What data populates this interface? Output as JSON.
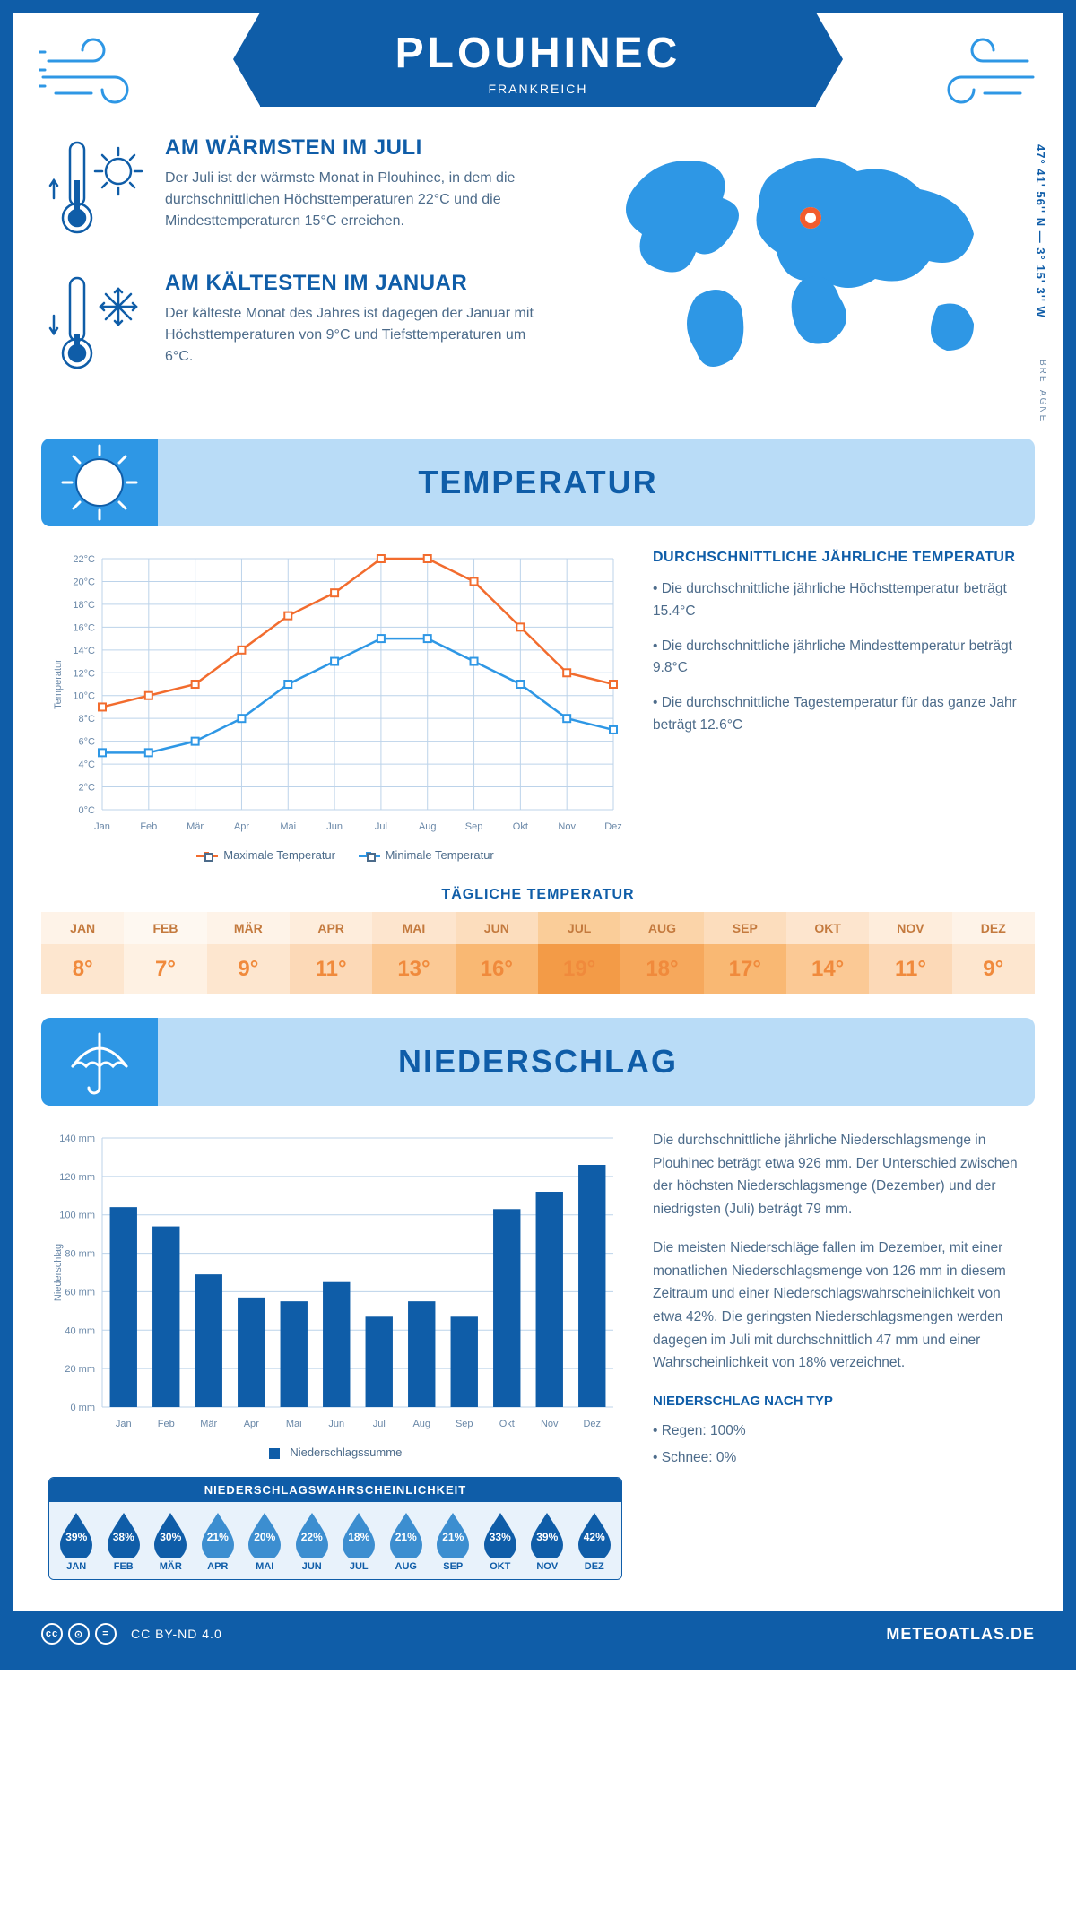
{
  "header": {
    "city": "PLOUHINEC",
    "country": "FRANKREICH",
    "coords": "47° 41' 56'' N — 3° 15' 3'' W",
    "region": "BRETAGNE"
  },
  "colors": {
    "brand": "#0f5da8",
    "banner_bg": "#b9dcf7",
    "banner_corner": "#2e97e5",
    "text_muted": "#4c6b8a",
    "grid": "#bcd3ea",
    "max_line": "#f26c2e",
    "min_line": "#2e97e5",
    "bar": "#0f5da8",
    "map_land": "#2e97e5"
  },
  "facts": {
    "warm": {
      "title": "AM WÄRMSTEN IM JULI",
      "body": "Der Juli ist der wärmste Monat in Plouhinec, in dem die durchschnittlichen Höchsttemperaturen 22°C und die Mindesttemperaturen 15°C erreichen."
    },
    "cold": {
      "title": "AM KÄLTESTEN IM JANUAR",
      "body": "Der kälteste Monat des Jahres ist dagegen der Januar mit Höchsttemperaturen von 9°C und Tiefsttemperaturen um 6°C."
    }
  },
  "temperature": {
    "section_title": "TEMPERATUR",
    "months": [
      "Jan",
      "Feb",
      "Mär",
      "Apr",
      "Mai",
      "Jun",
      "Jul",
      "Aug",
      "Sep",
      "Okt",
      "Nov",
      "Dez"
    ],
    "max": [
      9,
      10,
      11,
      14,
      17,
      19,
      22,
      22,
      20,
      16,
      12,
      11
    ],
    "min": [
      5,
      5,
      6,
      8,
      11,
      13,
      15,
      15,
      13,
      11,
      8,
      7
    ],
    "ylim": [
      0,
      22
    ],
    "ytick_step": 2,
    "y_unit": "°C",
    "y_axis_label": "Temperatur",
    "legend_max": "Maximale Temperatur",
    "legend_min": "Minimale Temperatur",
    "notes_title": "DURCHSCHNITTLICHE JÄHRLICHE TEMPERATUR",
    "note1": "• Die durchschnittliche jährliche Höchsttemperatur beträgt 15.4°C",
    "note2": "• Die durchschnittliche jährliche Mindesttemperatur beträgt 9.8°C",
    "note3": "• Die durchschnittliche Tagestemperatur für das ganze Jahr beträgt 12.6°C",
    "daily_title": "TÄGLICHE TEMPERATUR",
    "daily_months": [
      "JAN",
      "FEB",
      "MÄR",
      "APR",
      "MAI",
      "JUN",
      "JUL",
      "AUG",
      "SEP",
      "OKT",
      "NOV",
      "DEZ"
    ],
    "daily_values": [
      "8°",
      "7°",
      "9°",
      "11°",
      "13°",
      "16°",
      "19°",
      "18°",
      "17°",
      "14°",
      "11°",
      "9°"
    ],
    "daily_bg": [
      "#fde6cf",
      "#fef1e3",
      "#fde6cf",
      "#fcd9b7",
      "#fbc995",
      "#f9b873",
      "#f39b47",
      "#f6a85c",
      "#f9b873",
      "#fbc995",
      "#fcd9b7",
      "#fde6cf"
    ],
    "daily_header_bg": [
      "#fef3e8",
      "#fef8f1",
      "#fef3e8",
      "#feeddc",
      "#fde5ce",
      "#fcddbd",
      "#facd99",
      "#fbd4a9",
      "#fcddbd",
      "#fde5ce",
      "#feeddc",
      "#fef3e8"
    ],
    "daily_text": "#f08a3c",
    "daily_header_text": "#c47a3e"
  },
  "precip": {
    "section_title": "NIEDERSCHLAG",
    "months": [
      "Jan",
      "Feb",
      "Mär",
      "Apr",
      "Mai",
      "Jun",
      "Jul",
      "Aug",
      "Sep",
      "Okt",
      "Nov",
      "Dez"
    ],
    "values": [
      104,
      94,
      69,
      57,
      55,
      65,
      47,
      55,
      47,
      103,
      112,
      126
    ],
    "ylim": [
      0,
      140
    ],
    "ytick_step": 20,
    "y_unit": " mm",
    "y_axis_label": "Niederschlag",
    "legend": "Niederschlagssumme",
    "para1": "Die durchschnittliche jährliche Niederschlagsmenge in Plouhinec beträgt etwa 926 mm. Der Unterschied zwischen der höchsten Niederschlagsmenge (Dezember) und der niedrigsten (Juli) beträgt 79 mm.",
    "para2": "Die meisten Niederschläge fallen im Dezember, mit einer monatlichen Niederschlagsmenge von 126 mm in diesem Zeitraum und einer Niederschlagswahrscheinlichkeit von etwa 42%. Die geringsten Niederschlagsmengen werden dagegen im Juli mit durchschnittlich 47 mm und einer Wahrscheinlichkeit von 18% verzeichnet.",
    "type_title": "NIEDERSCHLAG NACH TYP",
    "type1": "• Regen: 100%",
    "type2": "• Schnee: 0%",
    "prob_title": "NIEDERSCHLAGSWAHRSCHEINLICHKEIT",
    "prob_months": [
      "JAN",
      "FEB",
      "MÄR",
      "APR",
      "MAI",
      "JUN",
      "JUL",
      "AUG",
      "SEP",
      "OKT",
      "NOV",
      "DEZ"
    ],
    "prob_values": [
      "39%",
      "38%",
      "30%",
      "21%",
      "20%",
      "22%",
      "18%",
      "21%",
      "21%",
      "33%",
      "39%",
      "42%"
    ],
    "prob_colors": [
      "#0f5da8",
      "#0f5da8",
      "#0f5da8",
      "#3c8ed0",
      "#3c8ed0",
      "#3c8ed0",
      "#3c8ed0",
      "#3c8ed0",
      "#3c8ed0",
      "#0f5da8",
      "#0f5da8",
      "#0f5da8"
    ]
  },
  "footer": {
    "license": "CC BY-ND 4.0",
    "brand": "METEOATLAS.DE"
  }
}
